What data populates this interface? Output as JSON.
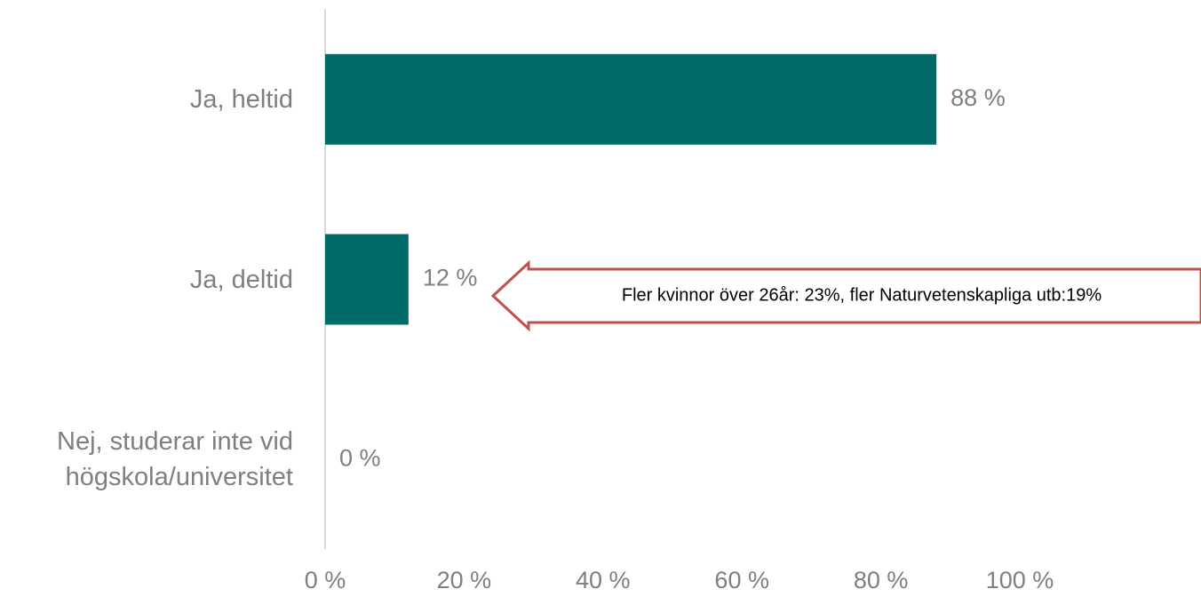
{
  "chart_data": {
    "type": "bar",
    "orientation": "horizontal",
    "categories": [
      "Ja, heltid",
      "Ja, deltid",
      "Nej, studerar inte vid högskola/universitet"
    ],
    "values": [
      88,
      12,
      0
    ],
    "value_labels": [
      "88 %",
      "12 %",
      "0 %"
    ],
    "color": "#006b68",
    "xlim": [
      0,
      100
    ],
    "xticks": [
      {
        "value": 0,
        "label": "0 %"
      },
      {
        "value": 20,
        "label": "20 %"
      },
      {
        "value": 40,
        "label": "40 %"
      },
      {
        "value": 60,
        "label": "60 %"
      },
      {
        "value": 80,
        "label": "80 %"
      },
      {
        "value": 100,
        "label": "100 %"
      }
    ],
    "annotation": "Fler kvinnor över 26år: 23%, fler Naturvetenskapliga utb:19%"
  }
}
